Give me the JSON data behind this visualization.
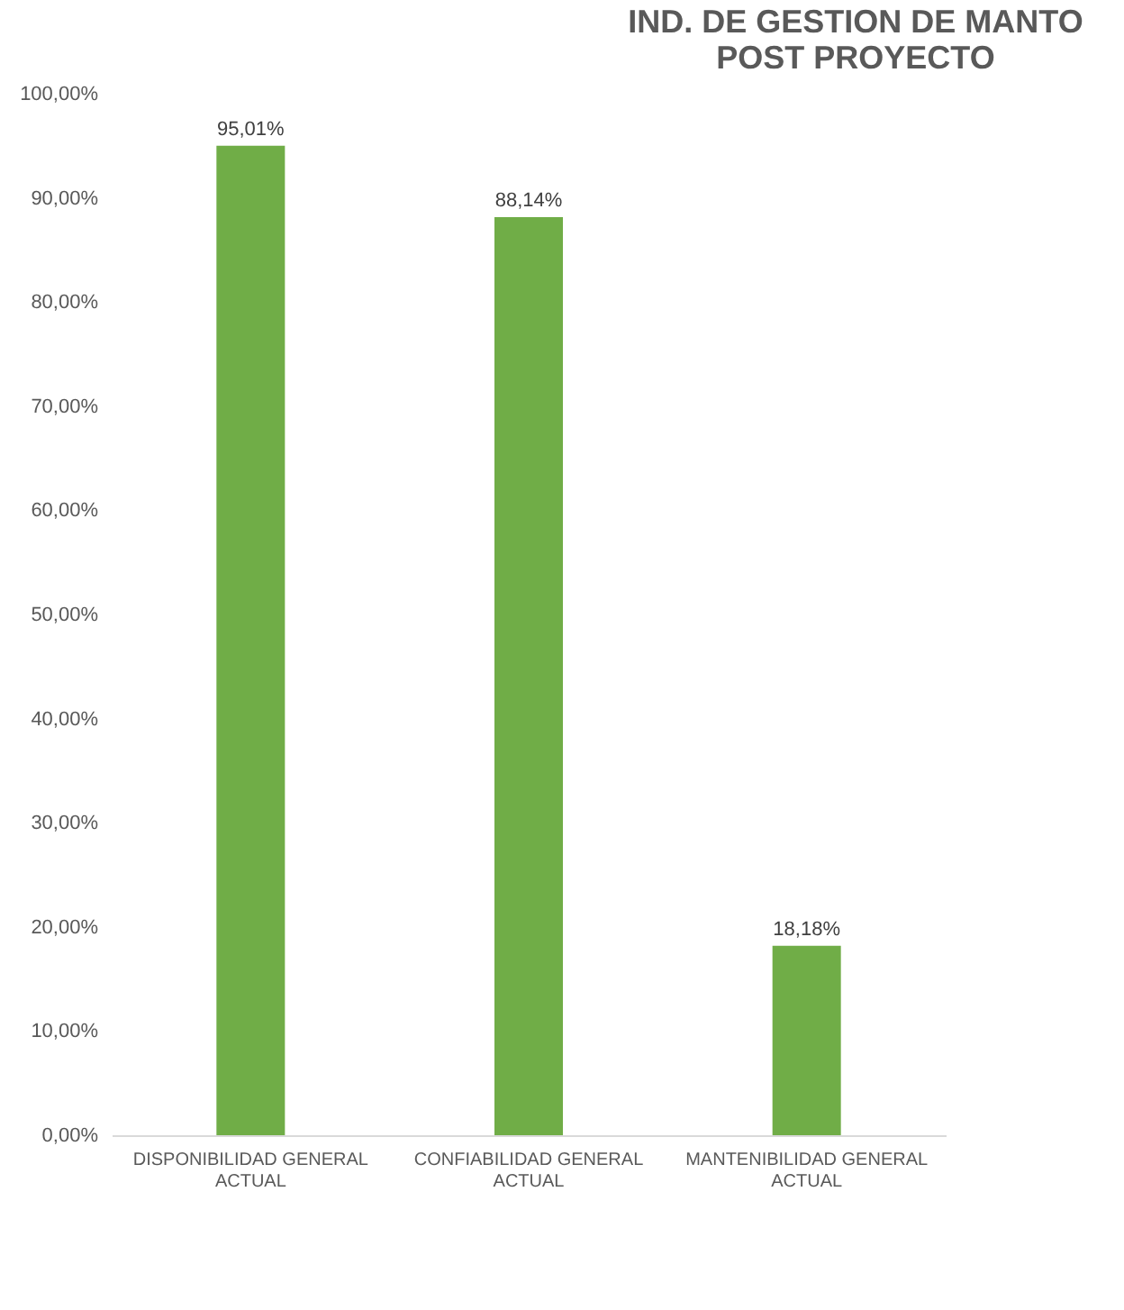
{
  "chart_data": {
    "type": "bar",
    "title": "IND. DE GESTION DE MANTO POST PROYECTO",
    "categories": [
      "DISPONIBILIDAD GENERAL ACTUAL",
      "CONFIABILIDAD GENERAL ACTUAL",
      "MANTENIBILIDAD GENERAL ACTUAL"
    ],
    "values": [
      95.01,
      88.14,
      18.18
    ],
    "value_labels": [
      "95,01%",
      "88,14%",
      "18,18%"
    ],
    "colors": [
      "#70ad47",
      "#70ad47",
      "#70ad47"
    ],
    "ylim": [
      0,
      100
    ],
    "yticks": [
      {
        "value": 0,
        "label": "0,00%"
      },
      {
        "value": 10,
        "label": "10,00%"
      },
      {
        "value": 20,
        "label": "20,00%"
      },
      {
        "value": 30,
        "label": "30,00%"
      },
      {
        "value": 40,
        "label": "40,00%"
      },
      {
        "value": 50,
        "label": "50,00%"
      },
      {
        "value": 60,
        "label": "60,00%"
      },
      {
        "value": 70,
        "label": "70,00%"
      },
      {
        "value": 80,
        "label": "80,00%"
      },
      {
        "value": 90,
        "label": "90,00%"
      },
      {
        "value": 100,
        "label": "100,00%"
      }
    ],
    "grid": false
  }
}
